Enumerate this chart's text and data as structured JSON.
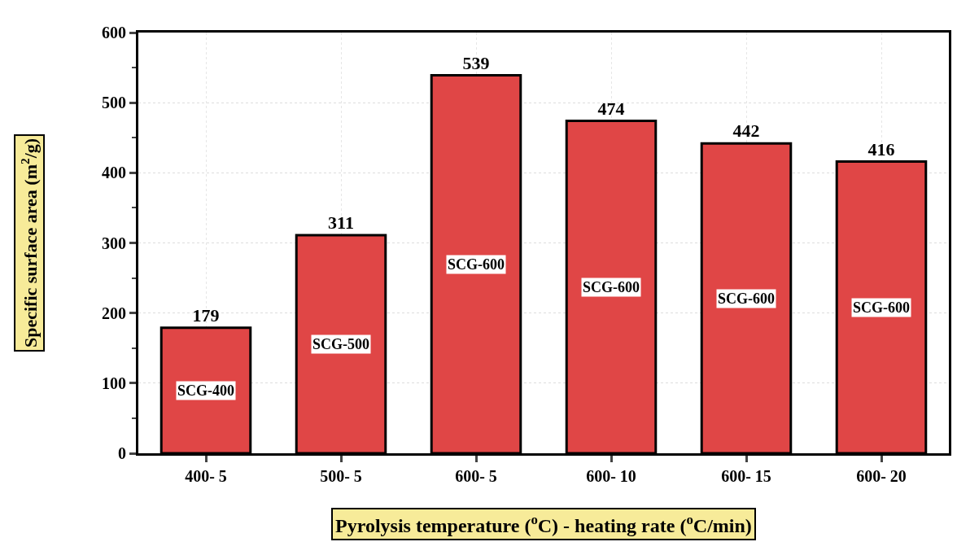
{
  "chart_data": {
    "type": "bar",
    "xlabel": "Pyrolysis temperature ($^{o}$C) - heating rate ($^{o}$C/min)",
    "ylabel": "Specific surface area (m$^{2}$/g)",
    "categories": [
      "400- 5",
      "500- 5",
      "600- 5",
      "600- 10",
      "600- 15",
      "600- 20"
    ],
    "values": [
      179,
      311,
      539,
      474,
      442,
      416
    ],
    "color": "#e04646",
    "data_labels": true,
    "ylim": [
      0,
      600
    ],
    "yticks": [
      0,
      100,
      200,
      300,
      400,
      500,
      600
    ],
    "grid": true,
    "annotations": [
      "SCG-400",
      "SCG-500",
      "SCG-600",
      "SCG-600",
      "SCG-600",
      "SCG-600"
    ]
  }
}
